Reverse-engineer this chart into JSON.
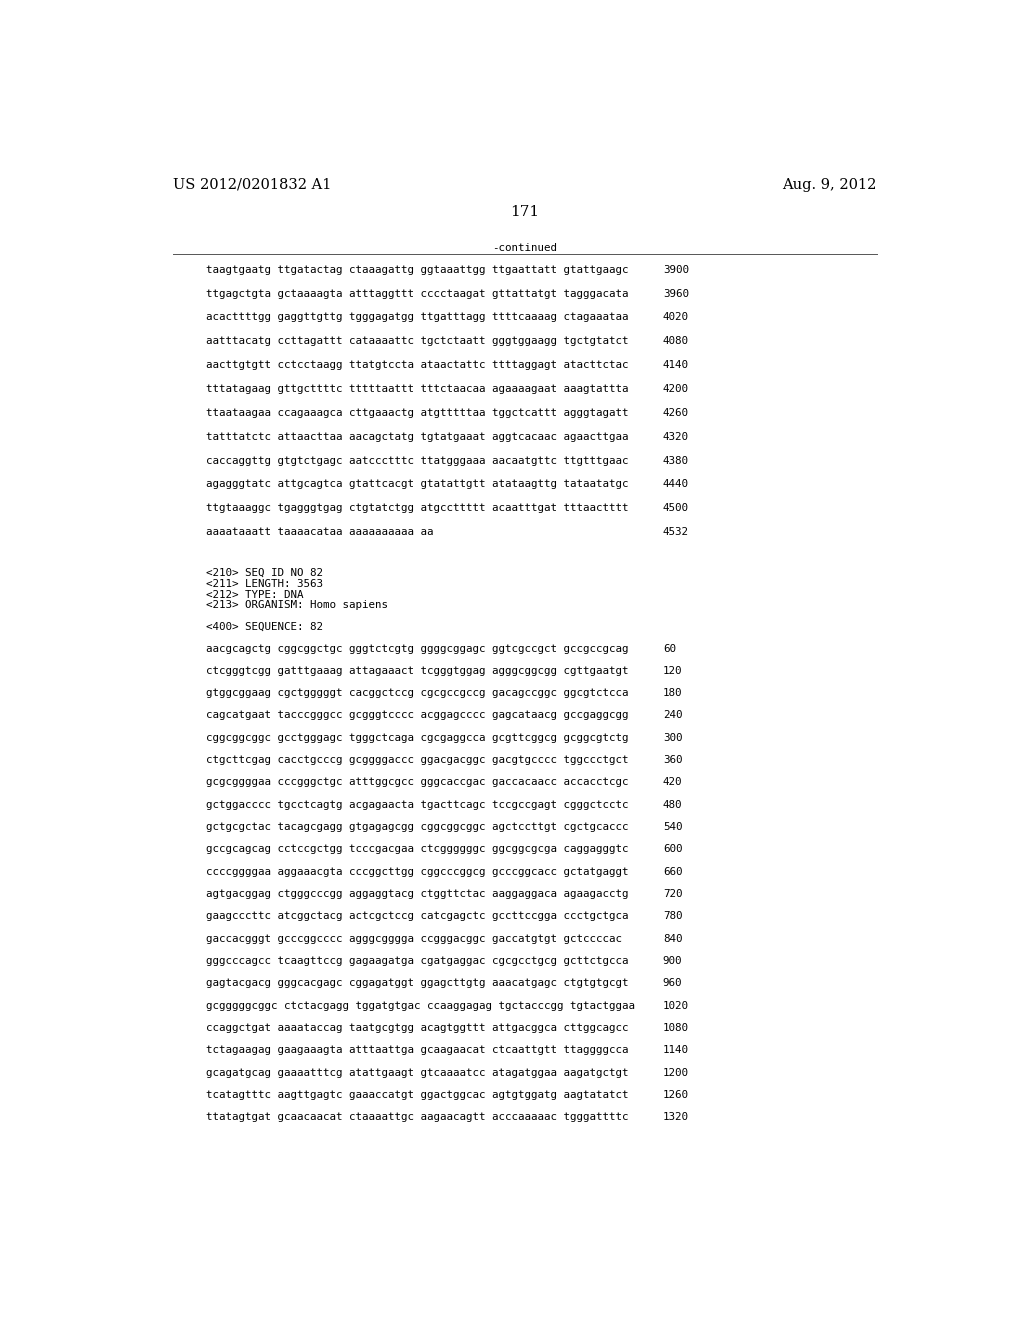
{
  "header_left": "US 2012/0201832 A1",
  "header_right": "Aug. 9, 2012",
  "page_number": "171",
  "continued_label": "-continued",
  "background_color": "#ffffff",
  "text_color": "#000000",
  "font_size_header": 10.5,
  "font_size_page": 11,
  "mono_fs": 7.8,
  "sequence_lines_top": [
    {
      "seq": "taagtgaatg ttgatactag ctaaagattg ggtaaattgg ttgaattatt gtattgaagc",
      "num": "3900"
    },
    {
      "seq": "ttgagctgta gctaaaagta atttaggttt cccctaagat gttattatgt tagggacata",
      "num": "3960"
    },
    {
      "seq": "acacttttgg gaggttgttg tgggagatgg ttgatttagg ttttcaaaag ctagaaataa",
      "num": "4020"
    },
    {
      "seq": "aatttacatg ccttagattt cataaaattc tgctctaatt gggtggaagg tgctgtatct",
      "num": "4080"
    },
    {
      "seq": "aacttgtgtt cctcctaagg ttatgtccta ataactattc ttttaggagt atacttctac",
      "num": "4140"
    },
    {
      "seq": "tttatagaag gttgcttttc tttttaattt tttctaacaa agaaaagaat aaagtattta",
      "num": "4200"
    },
    {
      "seq": "ttaataagaa ccagaaagca cttgaaactg atgtttttaa tggctcattt agggtagatt",
      "num": "4260"
    },
    {
      "seq": "tatttatctc attaacttaa aacagctatg tgtatgaaat aggtcacaac agaacttgaa",
      "num": "4320"
    },
    {
      "seq": "caccaggttg gtgtctgagc aatccctttc ttatgggaaa aacaatgttc ttgtttgaac",
      "num": "4380"
    },
    {
      "seq": "agagggtatc attgcagtca gtattcacgt gtatattgtt atataagttg tataatatgc",
      "num": "4440"
    },
    {
      "seq": "ttgtaaaggc tgagggtgag ctgtatctgg atgccttttt acaatttgat tttaactttt",
      "num": "4500"
    },
    {
      "seq": "aaaataaatt taaaacataa aaaaaaaaaa aa",
      "num": "4532"
    }
  ],
  "metadata_lines": [
    "<210> SEQ ID NO 82",
    "<211> LENGTH: 3563",
    "<212> TYPE: DNA",
    "<213> ORGANISM: Homo sapiens"
  ],
  "sequence_label": "<400> SEQUENCE: 82",
  "sequence_lines_bottom": [
    {
      "seq": "aacgcagctg cggcggctgc gggtctcgtg ggggcggagc ggtcgccgct gccgccgcag",
      "num": "60"
    },
    {
      "seq": "ctcgggtcgg gatttgaaag attagaaact tcgggtggag agggcggcgg cgttgaatgt",
      "num": "120"
    },
    {
      "seq": "gtggcggaag cgctgggggt cacggctccg cgcgccgccg gacagccggc ggcgtctcca",
      "num": "180"
    },
    {
      "seq": "cagcatgaat tacccgggcc gcgggtcccc acggagcccc gagcataacg gccgaggcgg",
      "num": "240"
    },
    {
      "seq": "cggcggcggc gcctgggagc tgggctcaga cgcgaggcca gcgttcggcg gcggcgtctg",
      "num": "300"
    },
    {
      "seq": "ctgcttcgag cacctgcccg gcggggaccc ggacgacggc gacgtgcccc tggccctgct",
      "num": "360"
    },
    {
      "seq": "gcgcggggaa cccgggctgc atttggcgcc gggcaccgac gaccacaacc accacctcgc",
      "num": "420"
    },
    {
      "seq": "gctggacccc tgcctcagtg acgagaacta tgacttcagc tccgccgagt cgggctcctc",
      "num": "480"
    },
    {
      "seq": "gctgcgctac tacagcgagg gtgagagcgg cggcggcggc agctccttgt cgctgcaccc",
      "num": "540"
    },
    {
      "seq": "gccgcagcag cctccgctgg tcccgacgaa ctcggggggc ggcggcgcga caggagggtc",
      "num": "600"
    },
    {
      "seq": "ccccggggaa aggaaacgta cccggcttgg cggcccggcg gcccggcacc gctatgaggt",
      "num": "660"
    },
    {
      "seq": "agtgacggag ctgggcccgg aggaggtacg ctggttctac aaggaggaca agaagacctg",
      "num": "720"
    },
    {
      "seq": "gaagcccttc atcggctacg actcgctccg catcgagctc gccttccgga ccctgctgca",
      "num": "780"
    },
    {
      "seq": "gaccacgggt gcccggcccc agggcgggga ccgggacggc gaccatgtgt gctccccac",
      "num": "840"
    },
    {
      "seq": "gggcccagcc tcaagttccg gagaagatga cgatgaggac cgcgcctgcg gcttctgcca",
      "num": "900"
    },
    {
      "seq": "gagtacgacg gggcacgagc cggagatggt ggagcttgtg aaacatgagc ctgtgtgcgt",
      "num": "960"
    },
    {
      "seq": "gcgggggcggc ctctacgagg tggatgtgac ccaaggagag tgctacccgg tgtactggaa",
      "num": "1020"
    },
    {
      "seq": "ccaggctgat aaaataccag taatgcgtgg acagtggttt attgacggca cttggcagcc",
      "num": "1080"
    },
    {
      "seq": "tctagaagag gaagaaagta atttaattga gcaagaacat ctcaattgtt ttaggggcca",
      "num": "1140"
    },
    {
      "seq": "gcagatgcag gaaaatttcg atattgaagt gtcaaaatcc atagatggaa aagatgctgt",
      "num": "1200"
    },
    {
      "seq": "tcatagtttc aagttgagtc gaaaccatgt ggactggcac agtgtggatg aagtatatct",
      "num": "1260"
    },
    {
      "seq": "ttatagtgat gcaacaacat ctaaaattgc aagaacagtt acccaaaaac tgggattttc",
      "num": "1320"
    }
  ]
}
